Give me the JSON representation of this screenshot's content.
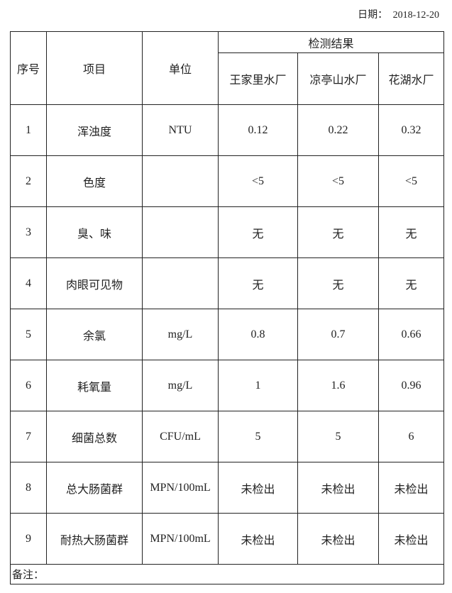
{
  "date": {
    "label": "日期：",
    "value": "2018-12-20"
  },
  "header": {
    "seq": "序号",
    "item": "项目",
    "unit": "单位",
    "results": "检测结果",
    "plants": [
      "王家里水厂",
      "凉亭山水厂",
      "花湖水厂"
    ]
  },
  "rows": [
    {
      "seq": "1",
      "item": "浑浊度",
      "unit": "NTU",
      "values": [
        "0.12",
        "0.22",
        "0.32"
      ]
    },
    {
      "seq": "2",
      "item": "色度",
      "unit": "",
      "values": [
        "<5",
        "<5",
        "<5"
      ]
    },
    {
      "seq": "3",
      "item": "臭、味",
      "unit": "",
      "values": [
        "无",
        "无",
        "无"
      ]
    },
    {
      "seq": "4",
      "item": "肉眼可见物",
      "unit": "",
      "values": [
        "无",
        "无",
        "无"
      ]
    },
    {
      "seq": "5",
      "item": "余氯",
      "unit": "mg/L",
      "values": [
        "0.8",
        "0.7",
        "0.66"
      ]
    },
    {
      "seq": "6",
      "item": "耗氧量",
      "unit": "mg/L",
      "values": [
        "1",
        "1.6",
        "0.96"
      ]
    },
    {
      "seq": "7",
      "item": "细菌总数",
      "unit": "CFU/mL",
      "values": [
        "5",
        "5",
        "6"
      ]
    },
    {
      "seq": "8",
      "item": "总大肠菌群",
      "unit": "MPN/100mL",
      "values": [
        "未检出",
        "未检出",
        "未检出"
      ]
    },
    {
      "seq": "9",
      "item": "耐热大肠菌群",
      "unit": "MPN/100mL",
      "values": [
        "未检出",
        "未检出",
        "未检出"
      ]
    }
  ],
  "note": {
    "label": "备注："
  }
}
